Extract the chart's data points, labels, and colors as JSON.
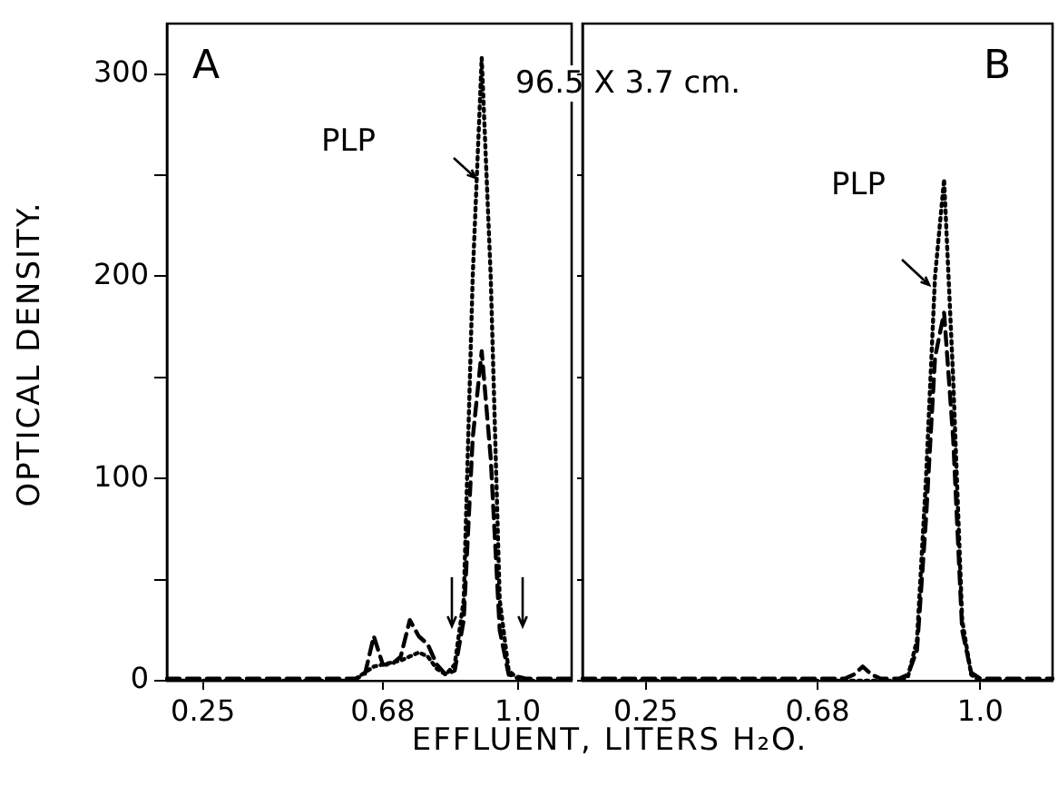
{
  "chart_data": [
    {
      "type": "line",
      "ylabel": "OPTICAL DENSITY.",
      "xlabel": "EFFLUENT, LITERS H₂O.",
      "annotations": [
        "A",
        "96.5 X 3.7 cm.",
        "PLP"
      ],
      "categories": [
        null,
        null,
        null,
        null,
        "0.25",
        null,
        null,
        null,
        null,
        null,
        null,
        null,
        null,
        null,
        null,
        null,
        null,
        null,
        null,
        null,
        null,
        null,
        null,
        null,
        "0.68",
        null,
        null,
        null,
        null,
        null,
        null,
        null,
        null,
        null,
        null,
        null,
        null,
        null,
        null,
        "1.0",
        null,
        null,
        null,
        null,
        null,
        null
      ],
      "ylim": [
        0,
        325
      ],
      "yticks": [
        0,
        {
          "value": 50,
          "label": null
        },
        100,
        {
          "value": 150,
          "label": null
        },
        200,
        {
          "value": 250,
          "label": null
        },
        300
      ],
      "grid": false,
      "legend": false,
      "series": [
        {
          "color": "#000000",
          "line_style": "dotted",
          "values": [
            0,
            0,
            0,
            0,
            0,
            0,
            0,
            0,
            0,
            0,
            0,
            0,
            0,
            0,
            0,
            0,
            0,
            0,
            0,
            0,
            0,
            1,
            4,
            7,
            8,
            9,
            10,
            12,
            14,
            12,
            6,
            3,
            8,
            40,
            200,
            308,
            200,
            40,
            5,
            1,
            0,
            0,
            0,
            0,
            0,
            0
          ]
        },
        {
          "color": "#000000",
          "line_style": "dashed",
          "values": [
            1,
            1,
            1,
            1,
            1,
            1,
            1,
            1,
            1,
            1,
            1,
            1,
            1,
            1,
            1,
            1,
            1,
            1,
            1,
            1,
            1,
            1,
            3,
            22,
            8,
            8,
            12,
            30,
            22,
            18,
            8,
            3,
            5,
            30,
            120,
            163,
            110,
            25,
            3,
            2,
            1,
            1,
            1,
            1,
            1,
            1
          ]
        }
      ]
    },
    {
      "type": "line",
      "annotations": [
        "B",
        "PLP"
      ],
      "tick_labels": "x",
      "categories": [
        null,
        null,
        null,
        null,
        null,
        null,
        null,
        "0.25",
        null,
        null,
        null,
        null,
        null,
        null,
        null,
        null,
        null,
        null,
        null,
        null,
        null,
        null,
        null,
        null,
        null,
        null,
        "0.68",
        null,
        null,
        null,
        null,
        null,
        null,
        null,
        null,
        null,
        null,
        null,
        null,
        null,
        null,
        null,
        null,
        null,
        "1.0",
        null,
        null,
        null,
        null,
        null,
        null,
        null,
        null
      ],
      "ylim": [
        0,
        325
      ],
      "yticks": [
        0,
        50,
        100,
        150,
        200,
        250,
        300
      ],
      "grid": false,
      "legend": false,
      "series": [
        {
          "color": "#000000",
          "line_style": "dotted",
          "values": [
            0,
            0,
            0,
            0,
            0,
            0,
            0,
            0,
            0,
            0,
            0,
            0,
            0,
            0,
            0,
            0,
            0,
            0,
            0,
            0,
            0,
            0,
            0,
            0,
            0,
            0,
            0,
            0,
            0,
            0,
            0,
            0,
            0,
            0,
            0,
            0,
            2,
            20,
            100,
            200,
            248,
            150,
            30,
            3,
            0,
            0,
            0,
            0,
            0,
            0,
            0,
            0,
            0
          ]
        },
        {
          "color": "#000000",
          "line_style": "dashed",
          "values": [
            1,
            1,
            1,
            1,
            1,
            1,
            1,
            1,
            1,
            1,
            1,
            1,
            1,
            1,
            1,
            1,
            1,
            1,
            1,
            1,
            1,
            1,
            1,
            1,
            1,
            1,
            1,
            1,
            1,
            1,
            3,
            7,
            3,
            1,
            1,
            1,
            3,
            15,
            80,
            160,
            182,
            120,
            25,
            4,
            1,
            1,
            1,
            1,
            1,
            1,
            1,
            1,
            1
          ]
        }
      ]
    }
  ]
}
